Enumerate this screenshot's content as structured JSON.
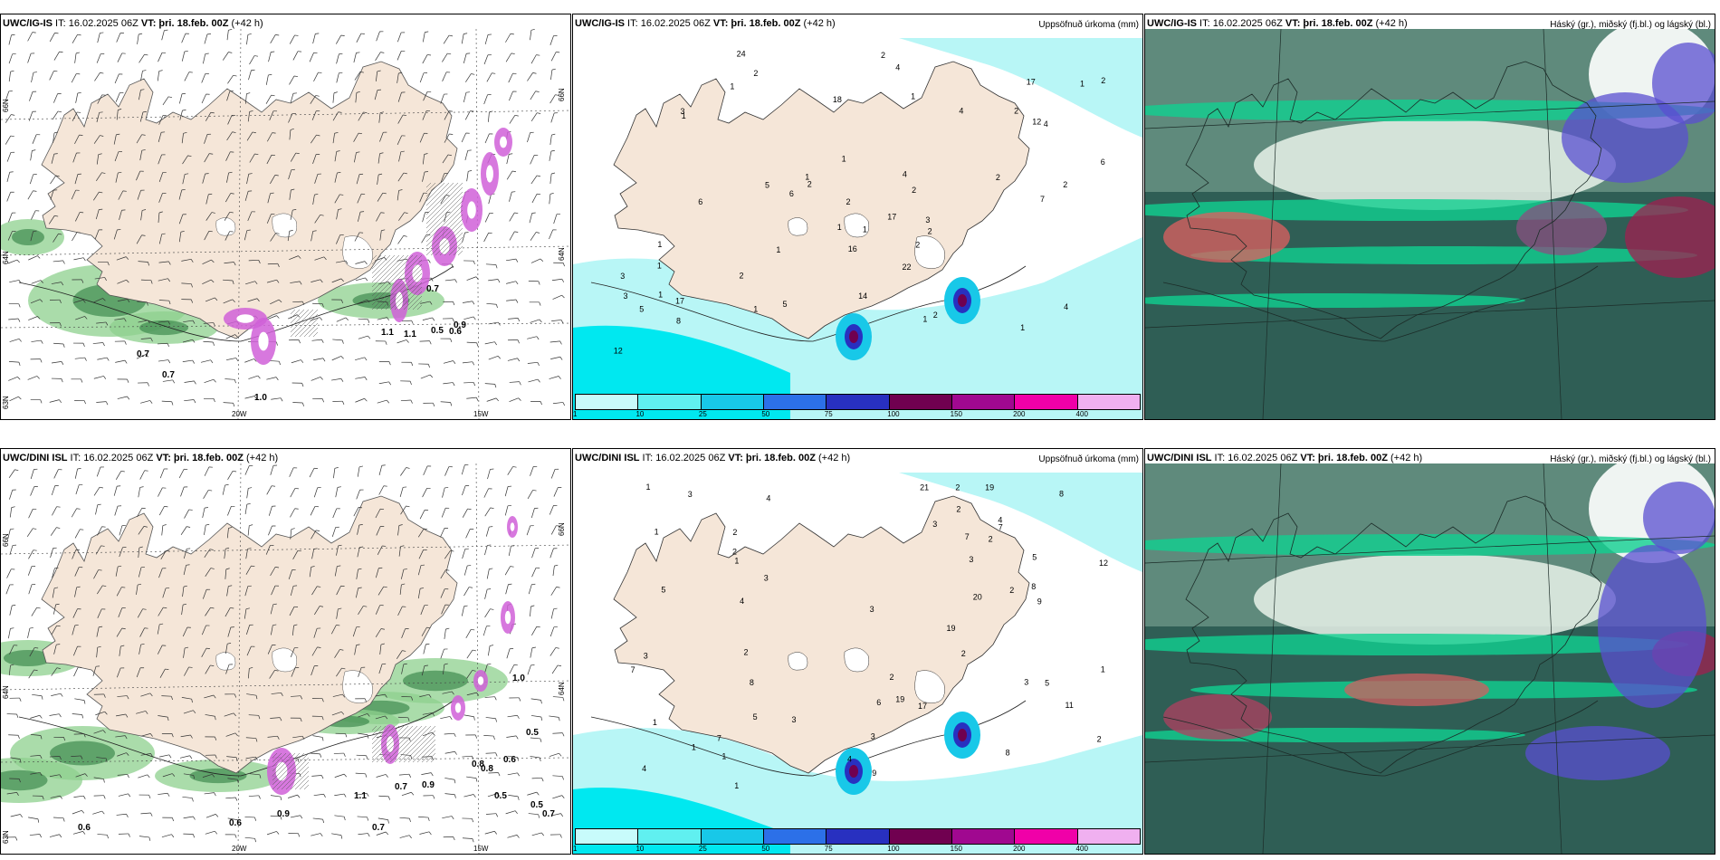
{
  "panels": [
    {
      "model": "UWC/IG-IS",
      "it": "IT: 16.02.2025 06Z",
      "vt": "VT: þri. 18.feb. 00Z",
      "lead": "(+42 h)",
      "right": "",
      "type": "wind"
    },
    {
      "model": "UWC/IG-IS",
      "it": "IT: 16.02.2025 06Z",
      "vt": "VT: þri. 18.feb. 00Z",
      "lead": "(+42 h)",
      "right": "Uppsöfnuð úrkoma (mm)",
      "type": "precip"
    },
    {
      "model": "UWC/IG-IS",
      "it": "IT: 16.02.2025 06Z",
      "vt": "VT: þri. 18.feb. 00Z",
      "lead": "(+42 h)",
      "right": "Háský (gr.), miðský (fj.bl.) og lágský (bl.)",
      "type": "cloud"
    },
    {
      "model": "UWC/DINI ISL",
      "it": "IT: 16.02.2025 06Z",
      "vt": "VT: þri. 18.feb. 00Z",
      "lead": "(+42 h)",
      "right": "",
      "type": "wind"
    },
    {
      "model": "UWC/DINI ISL",
      "it": "IT: 16.02.2025 06Z",
      "vt": "VT: þri. 18.feb. 00Z",
      "lead": "(+42 h)",
      "right": "Uppsöfnuð úrkoma (mm)",
      "type": "precip"
    },
    {
      "model": "UWC/DINI ISL",
      "it": "IT: 16.02.2025 06Z",
      "vt": "VT: þri. 18.feb. 00Z",
      "lead": "(+42 h)",
      "right": "Háský (gr.), miðský (fj.bl.) og lágský (bl.)",
      "type": "cloud"
    }
  ],
  "axis_labels": {
    "lat66": "66N",
    "lat64": "64N",
    "lat63": "63N",
    "lon20": "20W",
    "lon15": "15W"
  },
  "colorbar": {
    "ticks": [
      "1",
      "10",
      "25",
      "50",
      "75",
      "100",
      "150",
      "200",
      "400"
    ],
    "colors": [
      "#c8fbfb",
      "#60f0f0",
      "#18c8e8",
      "#2c70e8",
      "#2830c0",
      "#700050",
      "#a00890",
      "#f000a8",
      "#f0b0f0"
    ]
  },
  "colors": {
    "land": "#f5e6d8",
    "sea": "#ffffff",
    "precip_light": "#b8f6f6",
    "precip_mid": "#00e8f0",
    "wind_green": "#8ed08e",
    "snow_pink": "#d060d8",
    "cloud_dark": "#2f5e55"
  },
  "wind_labels_top": [
    "0.7",
    "0.7",
    "1.0",
    "0.5",
    "0.6",
    "1.1",
    "1.1",
    "0.9",
    "0.7"
  ],
  "wind_labels_bottom": [
    "0.6",
    "0.6",
    "0.7",
    "0.5",
    "0.5",
    "0.7",
    "0.8",
    "0.6",
    "0.5",
    "1.0",
    "0.9",
    "1.1",
    "0.7",
    "0.9",
    "0.8"
  ],
  "precip_labels_top": [
    "1",
    "2",
    "2",
    "1",
    "1",
    "1",
    "2",
    "1",
    "1",
    "1",
    "2",
    "2",
    "3",
    "2",
    "5",
    "4",
    "8",
    "12",
    "2",
    "1",
    "1",
    "1",
    "2",
    "1",
    "1",
    "4",
    "2",
    "5",
    "6",
    "17",
    "17",
    "16",
    "14",
    "24",
    "22",
    "1",
    "1",
    "12",
    "2",
    "2",
    "1",
    "18",
    "6",
    "6",
    "7",
    "4",
    "4",
    "3",
    "3",
    "2",
    "5",
    "2",
    "4",
    "3",
    "17"
  ],
  "precip_labels_bottom": [
    "2",
    "2",
    "2",
    "1",
    "1",
    "1",
    "2",
    "1",
    "1",
    "3",
    "3",
    "3",
    "4",
    "5",
    "3",
    "2",
    "3",
    "3",
    "2",
    "4",
    "19",
    "17",
    "11",
    "12",
    "5",
    "4",
    "1",
    "4",
    "20",
    "19",
    "19",
    "21",
    "8",
    "8",
    "8",
    "7",
    "7",
    "7",
    "5",
    "3",
    "2",
    "3",
    "8",
    "7",
    "1",
    "2",
    "5",
    "9",
    "6",
    "2",
    "1",
    "2",
    "4",
    "3",
    "9"
  ]
}
